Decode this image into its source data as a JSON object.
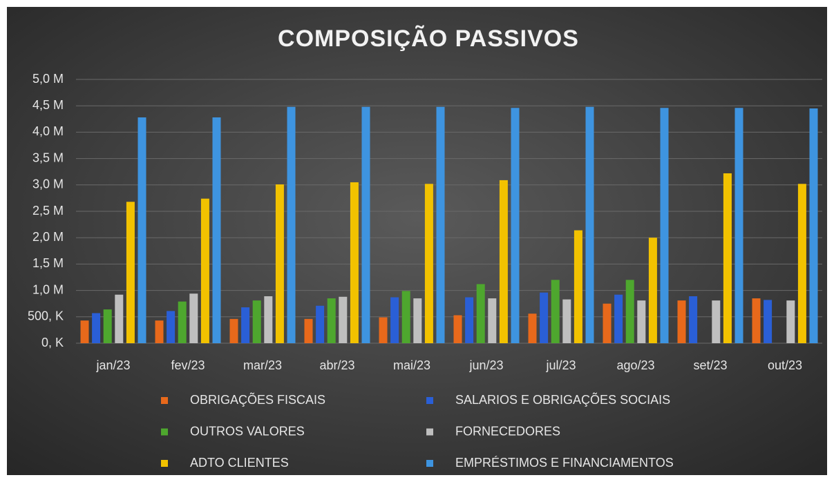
{
  "chart_data": {
    "type": "bar",
    "title": "COMPOSIÇÃO PASSIVOS",
    "categories": [
      "jan/23",
      "fev/23",
      "mar/23",
      "abr/23",
      "mai/23",
      "jun/23",
      "jul/23",
      "ago/23",
      "set/23",
      "out/23"
    ],
    "series": [
      {
        "name": "OBRIGAÇÕES FISCAIS",
        "color": "#e8691b",
        "values": [
          430000,
          430000,
          460000,
          460000,
          490000,
          530000,
          560000,
          750000,
          810000,
          850000
        ]
      },
      {
        "name": "SALARIOS E OBRIGAÇÕES SOCIAIS",
        "color": "#2a5fd6",
        "values": [
          570000,
          610000,
          680000,
          710000,
          870000,
          870000,
          960000,
          920000,
          890000,
          820000
        ]
      },
      {
        "name": "OUTROS VALORES",
        "color": "#4ea72e",
        "values": [
          640000,
          790000,
          810000,
          850000,
          990000,
          1120000,
          1200000,
          1200000,
          null,
          null
        ]
      },
      {
        "name": "FORNECEDORES",
        "color": "#bfbfbf",
        "values": [
          920000,
          940000,
          890000,
          880000,
          850000,
          850000,
          830000,
          810000,
          810000,
          810000
        ]
      },
      {
        "name": "ADTO CLIENTES",
        "color": "#f2c200",
        "values": [
          2680000,
          2740000,
          3010000,
          3050000,
          3020000,
          3090000,
          2140000,
          2000000,
          3220000,
          3020000
        ]
      },
      {
        "name": "EMPRÉSTIMOS E FINANCIAMENTOS",
        "color": "#3e94e0",
        "values": [
          4280000,
          4280000,
          4480000,
          4480000,
          4480000,
          4460000,
          4480000,
          4460000,
          4460000,
          4450000
        ]
      }
    ],
    "ylim": [
      0,
      5000000
    ],
    "yticks": [
      {
        "value": 0,
        "label": "0, K"
      },
      {
        "value": 500000,
        "label": "500, K"
      },
      {
        "value": 1000000,
        "label": "1,0 M"
      },
      {
        "value": 1500000,
        "label": "1,5 M"
      },
      {
        "value": 2000000,
        "label": "2,0 M"
      },
      {
        "value": 2500000,
        "label": "2,5 M"
      },
      {
        "value": 3000000,
        "label": "3,0 M"
      },
      {
        "value": 3500000,
        "label": "3,5 M"
      },
      {
        "value": 4000000,
        "label": "4,0 M"
      },
      {
        "value": 4500000,
        "label": "4,5 M"
      },
      {
        "value": 5000000,
        "label": "5,0 M"
      }
    ],
    "grid": true
  }
}
